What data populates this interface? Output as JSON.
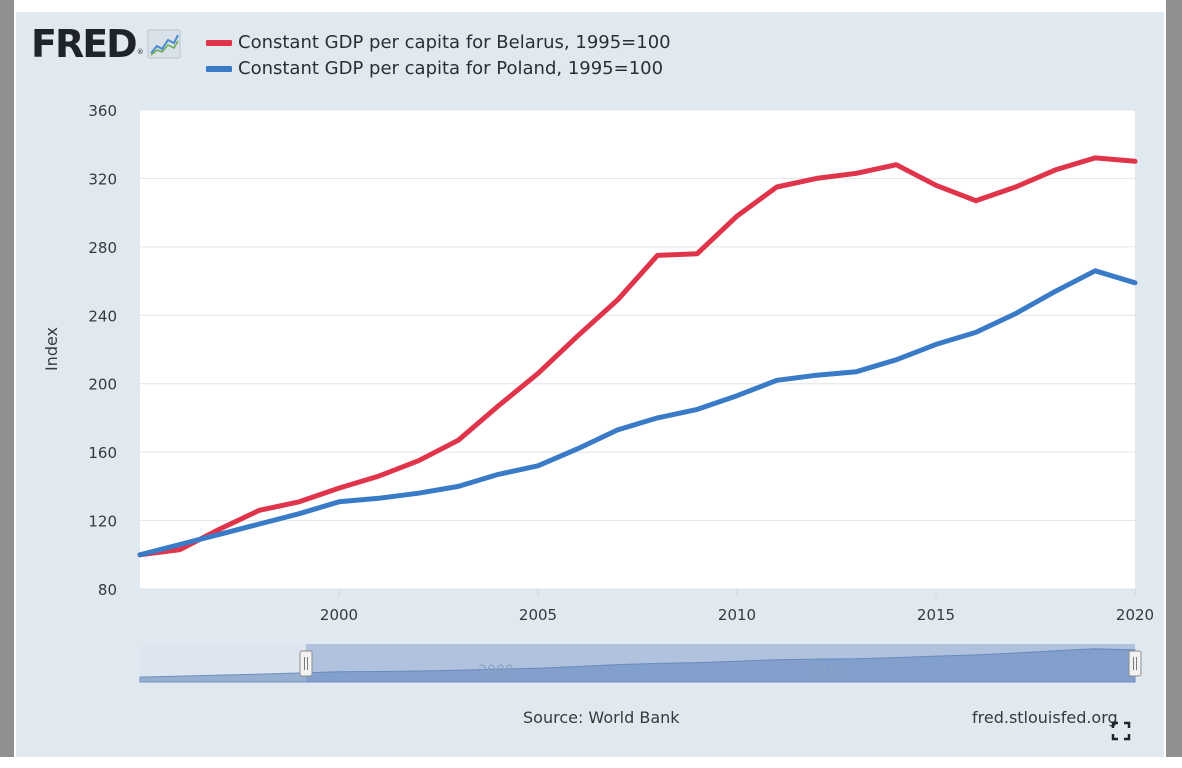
{
  "logo": {
    "text": "FRED",
    "reg": "®"
  },
  "legend": [
    {
      "label": "Constant GDP per capita for Belarus, 1995=100",
      "color": "#e0344b"
    },
    {
      "label": "Constant GDP per capita for Poland, 1995=100",
      "color": "#3a7bc8"
    }
  ],
  "chart_data": {
    "type": "line",
    "title": "",
    "xlabel": "",
    "ylabel": "Index",
    "xlim": [
      1995,
      2020
    ],
    "ylim": [
      80,
      360
    ],
    "x_ticks": [
      2000,
      2005,
      2010,
      2015,
      2020
    ],
    "y_ticks": [
      80,
      120,
      160,
      200,
      240,
      280,
      320,
      360
    ],
    "x": [
      1995,
      1996,
      1997,
      1998,
      1999,
      2000,
      2001,
      2002,
      2003,
      2004,
      2005,
      2006,
      2007,
      2008,
      2009,
      2010,
      2011,
      2012,
      2013,
      2014,
      2015,
      2016,
      2017,
      2018,
      2019,
      2020
    ],
    "series": [
      {
        "name": "Constant GDP per capita for Belarus, 1995=100",
        "color": "#e0344b",
        "values": [
          100,
          103,
          115,
          126,
          131,
          139,
          146,
          155,
          167,
          187,
          206,
          228,
          249,
          275,
          276,
          298,
          315,
          320,
          323,
          328,
          316,
          307,
          315,
          325,
          332,
          330
        ]
      },
      {
        "name": "Constant GDP per capita for Poland, 1995=100",
        "color": "#3a7bc8",
        "values": [
          100,
          106,
          112,
          118,
          124,
          131,
          133,
          136,
          140,
          147,
          152,
          162,
          173,
          180,
          185,
          193,
          202,
          205,
          207,
          214,
          223,
          230,
          241,
          254,
          266,
          259
        ]
      }
    ],
    "grid": true
  },
  "navigator": {
    "labels": [
      "2000",
      "2010"
    ]
  },
  "footer": {
    "source": "Source: World Bank",
    "site": "fred.stlouisfed.org"
  }
}
